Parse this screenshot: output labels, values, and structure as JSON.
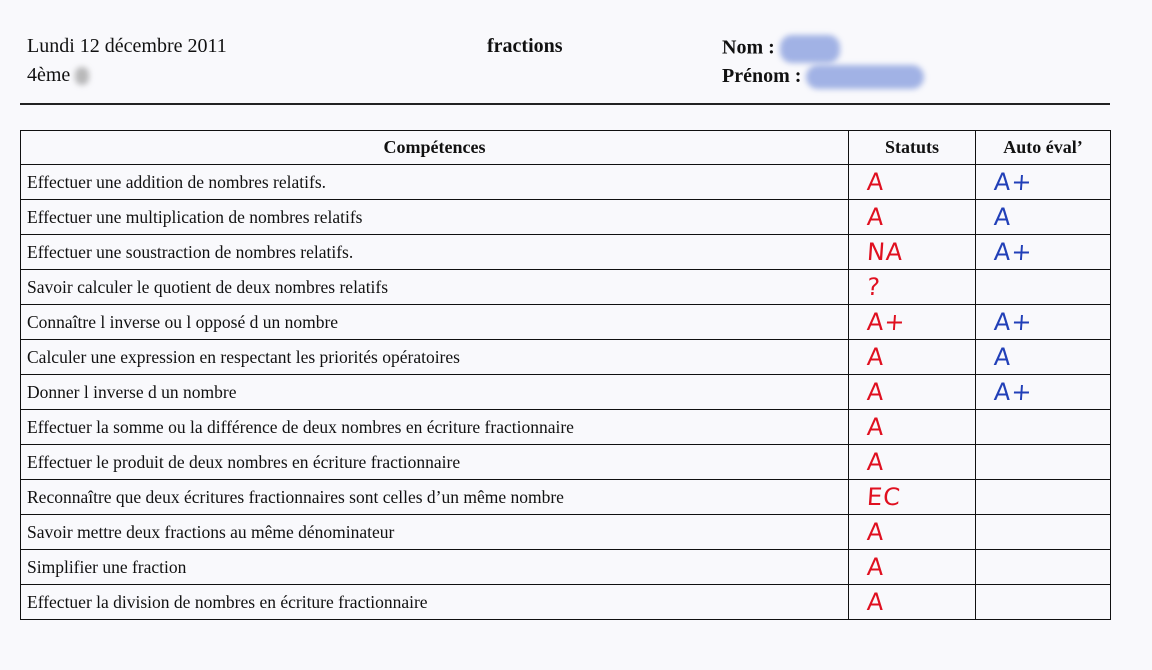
{
  "header": {
    "date": "Lundi 12 décembre 2011",
    "class": "4ème",
    "subject": "fractions",
    "nom_label": "Nom :",
    "prenom_label": "Prénom :"
  },
  "table": {
    "headers": [
      "Compétences",
      "Statuts",
      "Auto éval’"
    ],
    "rows": [
      {
        "competence": "Effectuer une addition de nombres relatifs.",
        "statut": "A",
        "auto": "A+"
      },
      {
        "competence": "Effectuer une multiplication de nombres relatifs",
        "statut": "A",
        "auto": "A"
      },
      {
        "competence": "Effectuer une soustraction de nombres relatifs.",
        "statut": "NA",
        "auto": "A+"
      },
      {
        "competence": "Savoir calculer le quotient de deux nombres relatifs",
        "statut": "?",
        "auto": ""
      },
      {
        "competence": "Connaître l inverse ou l opposé d un nombre",
        "statut": "A+",
        "auto": "A+"
      },
      {
        "competence": "Calculer une expression en respectant les priorités opératoires",
        "statut": "A",
        "auto": "A"
      },
      {
        "competence": "Donner l inverse d un nombre",
        "statut": "A",
        "auto": "A+"
      },
      {
        "competence": "Effectuer la somme ou la différence de deux nombres en écriture fractionnaire",
        "statut": "A",
        "auto": ""
      },
      {
        "competence": "Effectuer le produit de deux nombres en écriture fractionnaire",
        "statut": "A",
        "auto": ""
      },
      {
        "competence": "Reconnaître que deux écritures fractionnaires sont celles d’un même nombre",
        "statut": "EC",
        "auto": ""
      },
      {
        "competence": "Savoir mettre deux fractions au même dénominateur",
        "statut": "A",
        "auto": ""
      },
      {
        "competence": "Simplifier une fraction",
        "statut": "A",
        "auto": ""
      },
      {
        "competence": "Effectuer la division de nombres en écriture fractionnaire",
        "statut": "A",
        "auto": ""
      }
    ]
  },
  "colors": {
    "teacher_ink": "#e01020",
    "student_ink": "#2240b8"
  }
}
